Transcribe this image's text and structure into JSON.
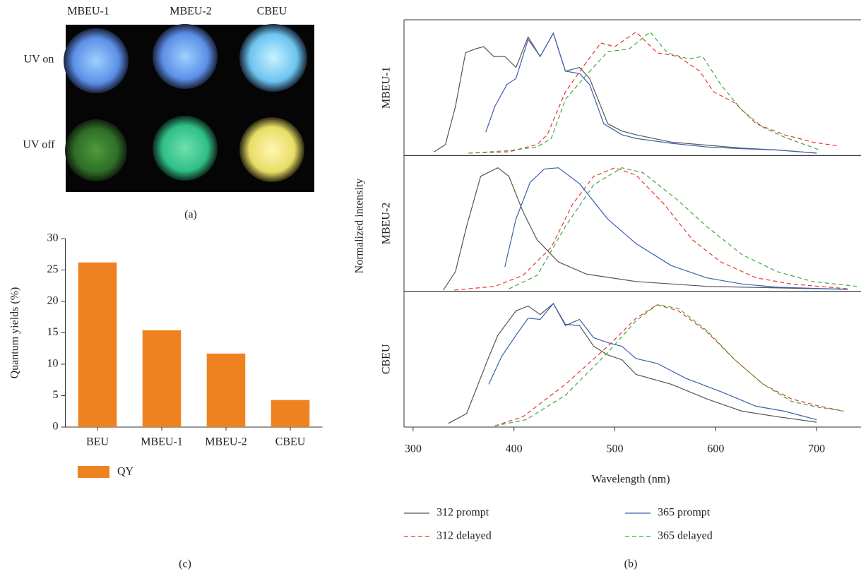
{
  "photo_panel": {
    "columns": [
      "MBEU-1",
      "MBEU-2",
      "CBEU"
    ],
    "rows": [
      "UV on",
      "UV off"
    ],
    "caption": "(a)"
  },
  "chart_data": [
    {
      "type": "bar",
      "categories": [
        "BEU",
        "MBEU-1",
        "MBEU-2",
        "CBEU"
      ],
      "series": [
        {
          "name": "QY",
          "color": "#ef8220",
          "values": [
            26.2,
            15.4,
            11.7,
            4.3
          ]
        }
      ],
      "ylim": [
        0,
        30
      ],
      "yticks": [
        0,
        5,
        10,
        15,
        20,
        25,
        30
      ],
      "y_label": "Quantum yields (%)",
      "caption": "(c)"
    },
    {
      "type": "line",
      "xlim": [
        291,
        744
      ],
      "xticks": [
        300,
        400,
        500,
        600,
        700
      ],
      "ylim": [
        -0.01,
        1.1
      ],
      "x_label": "Wavelength (nm)",
      "y_label": "Normalized intensity",
      "caption": "(b)",
      "series": [
        {
          "name": "312 prompt",
          "color": "#555555",
          "dashed": false
        },
        {
          "name": "312 delayed",
          "color": "#e8352b",
          "dashed": true
        },
        {
          "name": "365 prompt",
          "color": "#3a5fae",
          "dashed": false
        },
        {
          "name": "365 delayed",
          "color": "#3daa3a",
          "dashed": true
        }
      ],
      "panels": [
        {
          "label": "MBEU-1",
          "curves": [
            {
              "x": [
                321,
                332,
                342,
                352,
                361,
                370,
                380,
                391,
                402,
                414,
                426,
                439,
                451,
                465,
                475,
                493,
                507,
                521,
                556,
                591,
                626,
                661,
                700
              ],
              "values": [
                0.02,
                0.08,
                0.39,
                0.83,
                0.86,
                0.88,
                0.8,
                0.8,
                0.71,
                0.96,
                0.8,
                0.99,
                0.68,
                0.71,
                0.62,
                0.25,
                0.19,
                0.16,
                0.1,
                0.075,
                0.05,
                0.035,
                0.01
              ]
            },
            {
              "x": [
                355,
                395,
                423,
                433,
                451,
                468,
                486,
                500,
                521,
                542,
                563,
                584,
                598,
                619,
                640,
                668,
                696,
                720
              ],
              "values": [
                0.01,
                0.02,
                0.08,
                0.16,
                0.51,
                0.71,
                0.91,
                0.88,
                1.0,
                0.83,
                0.8,
                0.68,
                0.51,
                0.42,
                0.25,
                0.16,
                0.1,
                0.07
              ]
            },
            {
              "x": [
                372,
                381,
                393,
                402,
                414,
                426,
                439,
                451,
                465,
                475,
                489,
                507,
                521,
                556,
                591,
                626,
                661,
                700
              ],
              "values": [
                0.18,
                0.39,
                0.57,
                0.62,
                0.94,
                0.8,
                0.99,
                0.68,
                0.66,
                0.57,
                0.25,
                0.16,
                0.13,
                0.09,
                0.06,
                0.046,
                0.035,
                0.01
              ]
            },
            {
              "x": [
                355,
                395,
                423,
                437,
                451,
                472,
                493,
                514,
                535,
                552,
                573,
                587,
                605,
                626,
                647,
                668,
                703
              ],
              "values": [
                0.01,
                0.03,
                0.06,
                0.13,
                0.45,
                0.65,
                0.84,
                0.86,
                1.0,
                0.83,
                0.78,
                0.8,
                0.57,
                0.36,
                0.22,
                0.14,
                0.035
              ]
            }
          ]
        },
        {
          "label": "MBEU-2",
          "curves": [
            {
              "x": [
                330,
                342,
                353,
                367,
                384,
                395,
                409,
                423,
                444,
                472,
                521,
                591,
                731
              ],
              "values": [
                0,
                0.15,
                0.52,
                0.93,
                1.0,
                0.93,
                0.64,
                0.41,
                0.23,
                0.13,
                0.07,
                0.03,
                0.006
              ]
            },
            {
              "x": [
                341,
                381,
                409,
                437,
                458,
                479,
                500,
                521,
                549,
                577,
                605,
                640,
                675,
                731
              ],
              "values": [
                0,
                0.03,
                0.12,
                0.35,
                0.7,
                0.93,
                1.0,
                0.94,
                0.7,
                0.41,
                0.23,
                0.1,
                0.05,
                0.01
              ]
            },
            {
              "x": [
                391,
                402,
                416,
                430,
                444,
                465,
                493,
                521,
                556,
                591,
                626,
                661,
                731
              ],
              "values": [
                0.19,
                0.58,
                0.88,
                0.99,
                1.0,
                0.87,
                0.58,
                0.38,
                0.2,
                0.1,
                0.05,
                0.023,
                0.006
              ]
            },
            {
              "x": [
                395,
                423,
                451,
                479,
                507,
                528,
                563,
                591,
                626,
                661,
                696,
                740
              ],
              "values": [
                0.01,
                0.12,
                0.52,
                0.86,
                1.0,
                0.96,
                0.73,
                0.52,
                0.29,
                0.15,
                0.07,
                0.03
              ]
            }
          ]
        },
        {
          "label": "CBEU",
          "curves": [
            {
              "x": [
                335,
                353,
                374,
                384,
                402,
                414,
                426,
                439,
                451,
                465,
                479,
                493,
                507,
                521,
                556,
                591,
                626,
                661,
                700
              ],
              "values": [
                0.02,
                0.1,
                0.54,
                0.74,
                0.94,
                0.98,
                0.91,
                1.0,
                0.83,
                0.82,
                0.65,
                0.58,
                0.54,
                0.42,
                0.34,
                0.22,
                0.12,
                0.075,
                0.03
              ]
            },
            {
              "x": [
                381,
                409,
                451,
                493,
                521,
                542,
                563,
                591,
                619,
                647,
                675,
                703,
                727
              ],
              "values": [
                0,
                0.075,
                0.34,
                0.65,
                0.88,
                0.99,
                0.94,
                0.77,
                0.54,
                0.34,
                0.22,
                0.16,
                0.12
              ]
            },
            {
              "x": [
                375,
                388,
                402,
                414,
                426,
                439,
                451,
                465,
                479,
                493,
                507,
                521,
                542,
                570,
                605,
                640,
                668,
                700
              ],
              "values": [
                0.34,
                0.57,
                0.74,
                0.88,
                0.87,
                1.0,
                0.82,
                0.87,
                0.72,
                0.68,
                0.65,
                0.55,
                0.51,
                0.39,
                0.28,
                0.16,
                0.12,
                0.05
              ]
            },
            {
              "x": [
                381,
                412,
                451,
                493,
                521,
                542,
                563,
                591,
                619,
                647,
                675,
                703,
                727
              ],
              "values": [
                0,
                0.05,
                0.25,
                0.6,
                0.86,
                0.99,
                0.96,
                0.78,
                0.54,
                0.34,
                0.2,
                0.15,
                0.12
              ]
            }
          ]
        }
      ]
    }
  ]
}
